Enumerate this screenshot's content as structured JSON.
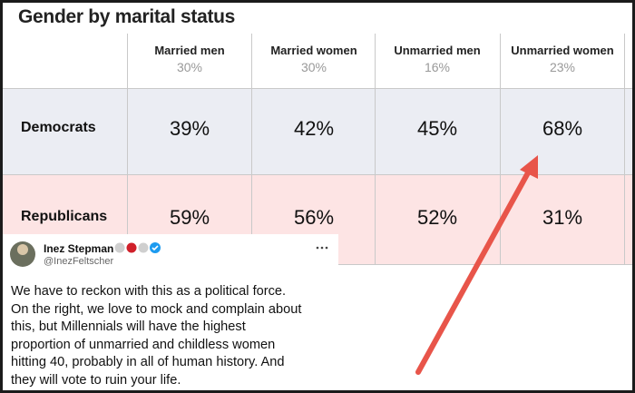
{
  "table": {
    "title": "Gender by marital status",
    "columns": [
      {
        "name": "Married men",
        "share": "30%"
      },
      {
        "name": "Married women",
        "share": "30%"
      },
      {
        "name": "Unmarried men",
        "share": "16%"
      },
      {
        "name": "Unmarried women",
        "share": "23%"
      }
    ],
    "rows": [
      {
        "label": "Democrats",
        "cells": [
          "39%",
          "42%",
          "45%",
          "68%"
        ]
      },
      {
        "label": "Republicans",
        "cells": [
          "59%",
          "56%",
          "52%",
          "31%"
        ]
      }
    ]
  },
  "tweet": {
    "name": "Inez Stepman",
    "handle": "@InezFeltscher",
    "lines": [
      "We have to reckon with this as a political force.",
      "On the right, we love to mock and complain about",
      "this, but Millennials will have the highest",
      "proportion of unmarried and childless women",
      "hitting 40, probably in all of human history. And",
      "they will vote to ruin your life."
    ]
  }
}
